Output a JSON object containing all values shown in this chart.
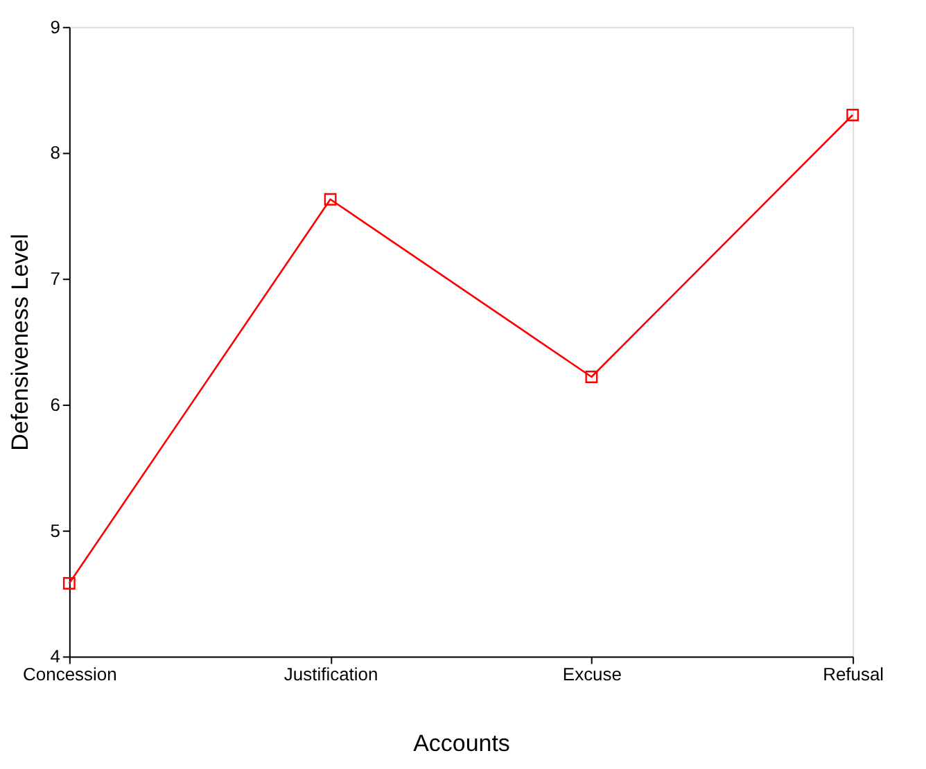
{
  "chart_data": {
    "type": "line",
    "xlabel": "Accounts",
    "ylabel": "Defensiveness Level",
    "categories": [
      "Concession",
      "Justification",
      "Excuse",
      "Refusal"
    ],
    "series": [
      {
        "color": "#ff0000",
        "values": [
          4.58,
          7.63,
          6.22,
          8.3
        ]
      }
    ],
    "ylim": [
      4,
      9
    ],
    "yticks": [
      4,
      5,
      6,
      7,
      8,
      9
    ],
    "grid": false,
    "legend": false,
    "marker": "square",
    "line_style": "solid"
  }
}
